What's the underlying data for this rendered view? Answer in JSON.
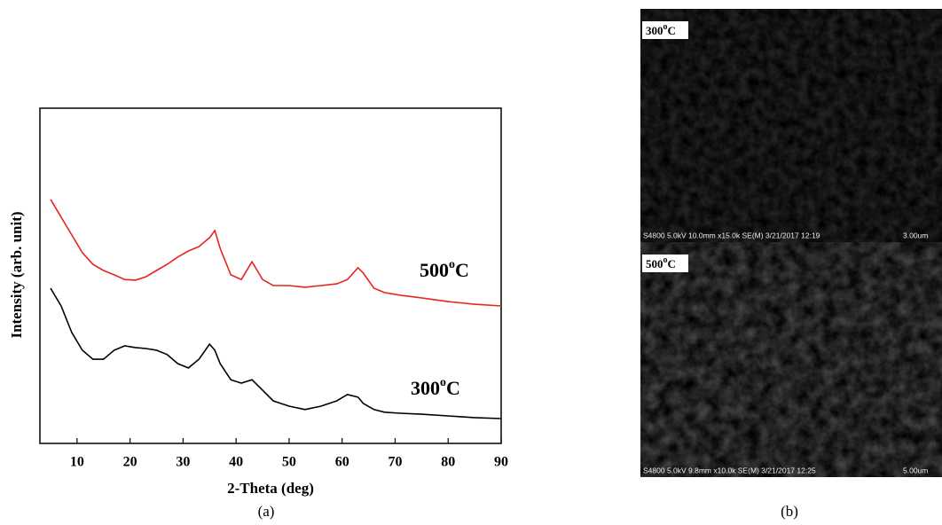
{
  "chart_data": {
    "type": "line",
    "xlabel": "2-Theta (deg)",
    "ylabel": "Intensity (arb. unit)",
    "x": [
      5,
      7,
      9,
      11,
      13,
      15,
      17,
      19,
      21,
      23,
      25,
      27,
      29,
      31,
      33,
      35,
      36,
      37,
      39,
      41,
      43,
      45,
      47,
      50,
      53,
      56,
      59,
      61,
      63,
      64,
      66,
      68,
      71,
      75,
      80,
      85,
      90
    ],
    "series": [
      {
        "name": "500",
        "color": "#e8241f",
        "values": [
          72.8,
          67.5,
          62.2,
          56.9,
          53.4,
          51.6,
          50.3,
          48.9,
          48.7,
          49.7,
          51.6,
          53.4,
          55.6,
          57.4,
          58.7,
          61.4,
          63.5,
          58.2,
          50.3,
          48.9,
          54.2,
          48.9,
          47.1,
          47.1,
          46.6,
          47.1,
          47.6,
          48.9,
          52.4,
          50.8,
          46.3,
          45.0,
          44.2,
          43.4,
          42.3,
          41.5,
          41.0
        ]
      },
      {
        "name": "300",
        "color": "#000000",
        "values": [
          46.3,
          41.0,
          33.1,
          27.8,
          25.1,
          25.1,
          27.8,
          29.1,
          28.6,
          28.3,
          27.8,
          26.5,
          23.8,
          22.5,
          25.1,
          29.6,
          27.8,
          23.8,
          19.0,
          18.0,
          19.0,
          15.9,
          12.7,
          11.1,
          10.1,
          11.1,
          12.7,
          14.6,
          13.8,
          11.9,
          10.1,
          9.3,
          9.0,
          8.7,
          8.2,
          7.7,
          7.4
        ]
      }
    ],
    "annotations": [
      {
        "text": "500",
        "sup": "o",
        "unit": "C"
      },
      {
        "text": "300",
        "sup": "o",
        "unit": "C"
      }
    ],
    "xlim": [
      3,
      90
    ],
    "xticks": [
      10,
      20,
      30,
      40,
      50,
      60,
      70,
      80,
      90
    ],
    "ylim": [
      0,
      100
    ],
    "caption": "(a)"
  },
  "sem": {
    "caption": "(b)",
    "panels": [
      {
        "label": "300",
        "sup": "o",
        "unit": "C",
        "info": "S4800 5.0kV 10.0mm x15.0k SE(M) 3/21/2017 12:19",
        "scale": "3.00um"
      },
      {
        "label": "500",
        "sup": "o",
        "unit": "C",
        "info": "S4800 5.0kV 9.8mm x10.0k SE(M) 3/21/2017 12:25",
        "scale": "5.00um"
      }
    ]
  }
}
